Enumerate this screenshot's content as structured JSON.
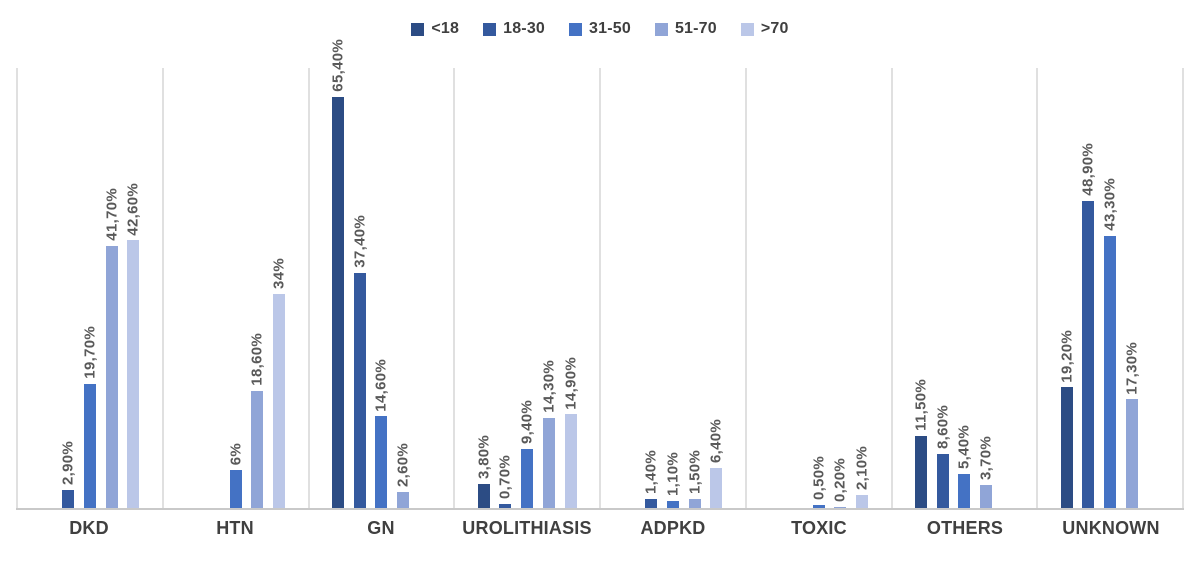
{
  "legend": {
    "items": [
      {
        "label": "<18",
        "color": "#2C4C84"
      },
      {
        "label": "18-30",
        "color": "#34599E"
      },
      {
        "label": "31-50",
        "color": "#4472C4"
      },
      {
        "label": "51-70",
        "color": "#90A5D7"
      },
      {
        "label": ">70",
        "color": "#BBC7E8"
      }
    ]
  },
  "chart_data": {
    "type": "bar",
    "title": "",
    "categories": [
      "DKD",
      "HTN",
      "GN",
      "UROLITHIASIS",
      "ADPKD",
      "TOXIC",
      "OTHERS",
      "UNKNOWN"
    ],
    "series": [
      {
        "name": "<18",
        "color": "#2C4C84",
        "values": [
          null,
          null,
          65.4,
          3.8,
          null,
          null,
          11.5,
          19.2
        ],
        "labels": [
          null,
          null,
          "65,40%",
          "3,80%",
          null,
          null,
          "11,50%",
          "19,20%"
        ]
      },
      {
        "name": "18-30",
        "color": "#34599E",
        "values": [
          2.9,
          null,
          37.4,
          0.7,
          1.4,
          null,
          8.6,
          48.9
        ],
        "labels": [
          "2,90%",
          null,
          "37,40%",
          "0,70%",
          "1,40%",
          null,
          "8,60%",
          "48,90%"
        ]
      },
      {
        "name": "31-50",
        "color": "#4472C4",
        "values": [
          19.7,
          6,
          14.6,
          9.4,
          1.1,
          0.5,
          5.4,
          43.3
        ],
        "labels": [
          "19,70%",
          "6%",
          "14,60%",
          "9,40%",
          "1,10%",
          "0,50%",
          "5,40%",
          "43,30%"
        ]
      },
      {
        "name": "51-70",
        "color": "#90A5D7",
        "values": [
          41.7,
          18.6,
          2.6,
          14.3,
          1.5,
          0.2,
          3.7,
          17.3
        ],
        "labels": [
          "41,70%",
          "18,60%",
          "2,60%",
          "14,30%",
          "1,50%",
          "0,20%",
          "3,70%",
          "17,30%"
        ]
      },
      {
        "name": ">70",
        "color": "#BBC7E8",
        "values": [
          42.6,
          34,
          null,
          14.9,
          6.4,
          2.1,
          null,
          null
        ],
        "labels": [
          "42,60%",
          "34%",
          null,
          "14,90%",
          "6,40%",
          "2,10%",
          null,
          null
        ]
      }
    ],
    "xlabel": "",
    "ylabel": "",
    "ylim": [
      0,
      70
    ],
    "value_suffix": "%",
    "decimal_separator": ",",
    "y_axis_visible": false,
    "grid": "vertical-category-separators",
    "legend_position": "top",
    "data_labels": "rotated-90-above-bars"
  }
}
